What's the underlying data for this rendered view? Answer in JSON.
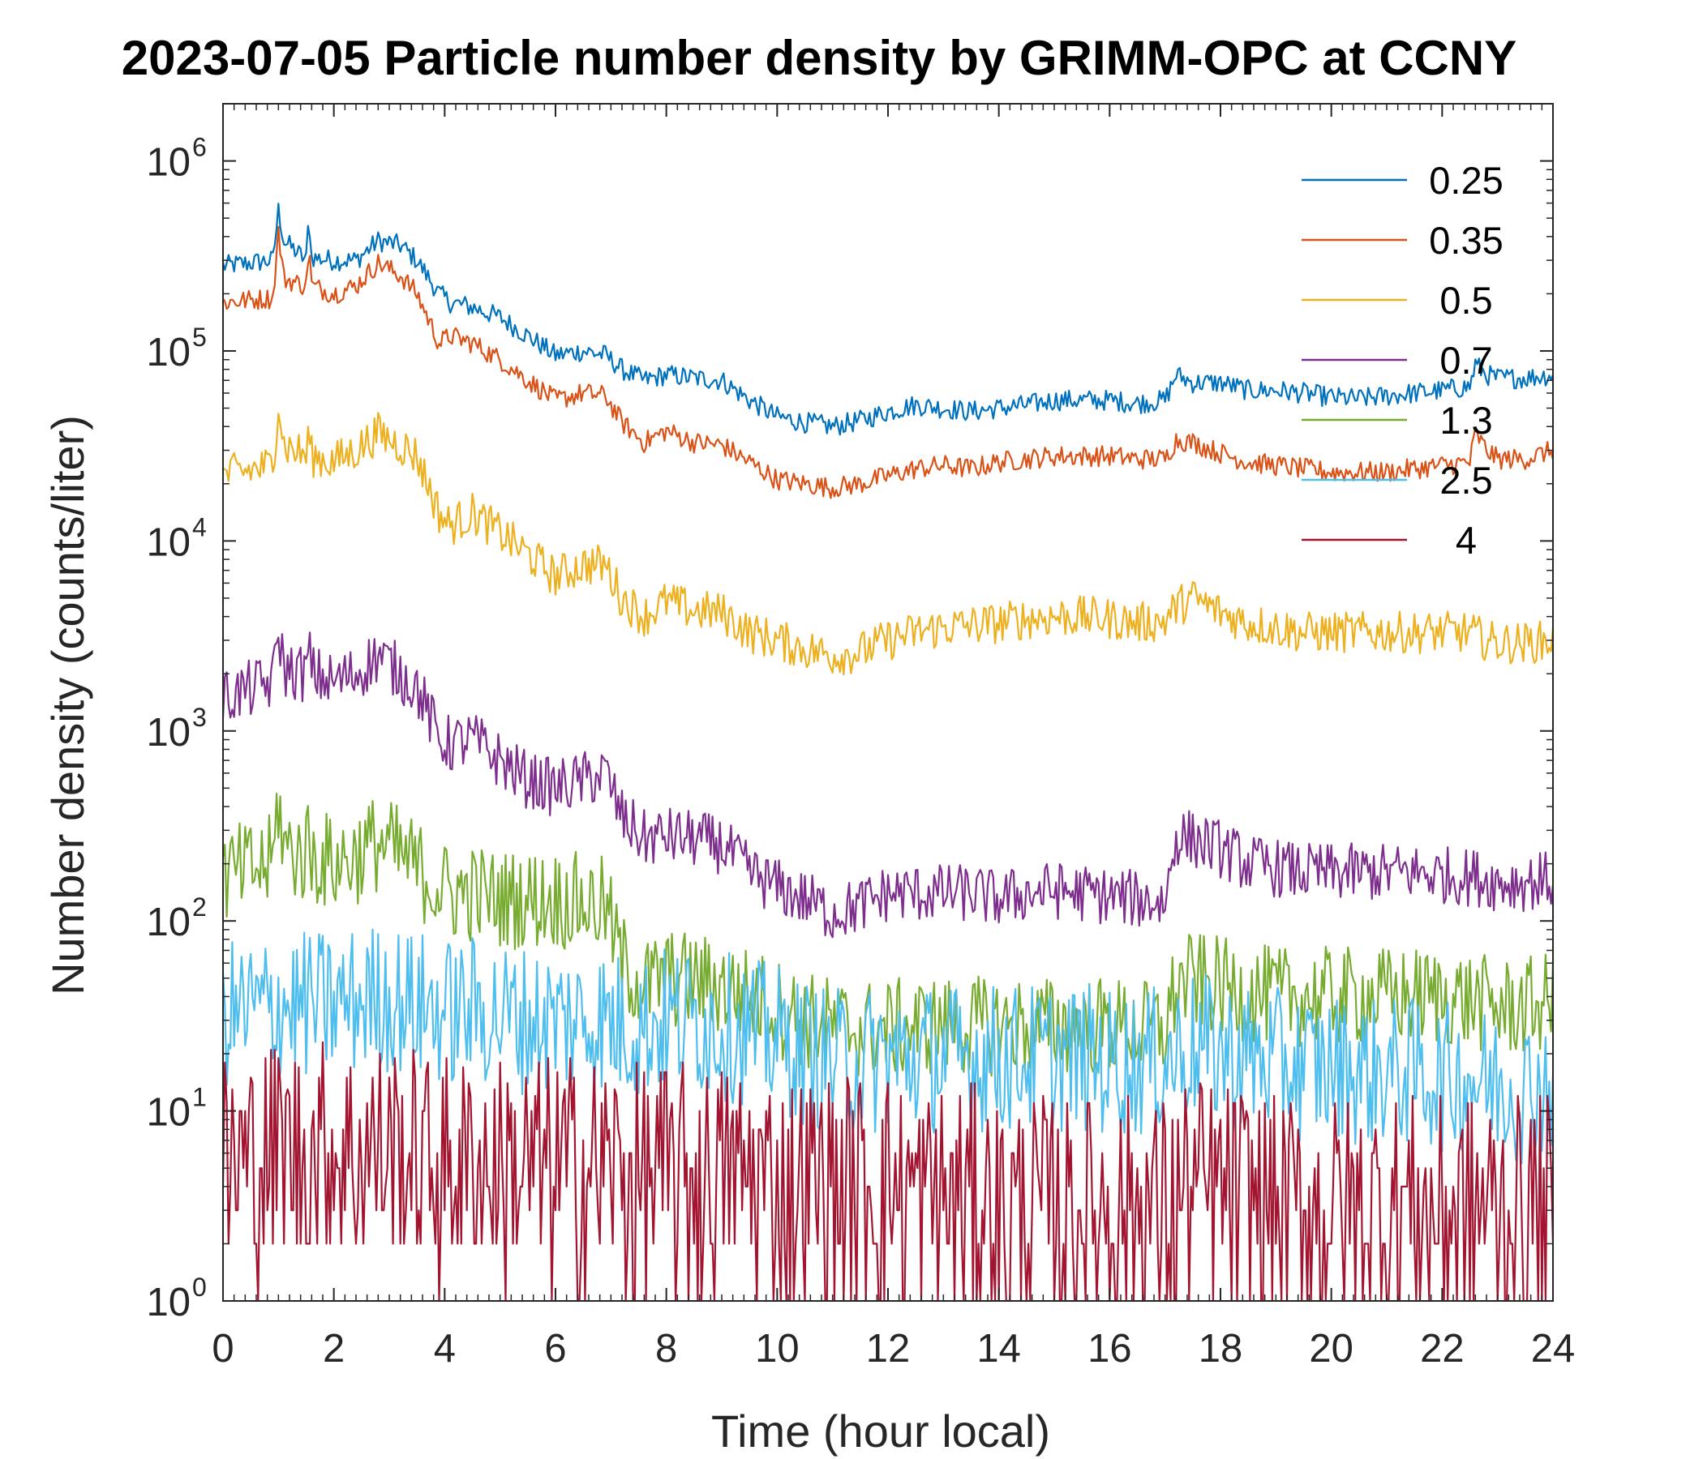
{
  "chart_data": {
    "type": "line",
    "title": "2023-07-05 Particle number density by GRIMM-OPC at CCNY",
    "xlabel": "Time (hour local)",
    "ylabel": "Number density (counts/liter)",
    "xlim": [
      0,
      24
    ],
    "ylim": [
      1,
      2000000
    ],
    "yscale": "log",
    "xticks": [
      0,
      2,
      4,
      6,
      8,
      10,
      12,
      14,
      16,
      18,
      20,
      22,
      24
    ],
    "ytick_base": "10",
    "ytick_exponents": [
      "0",
      "1",
      "2",
      "3",
      "4",
      "5",
      "6"
    ],
    "legend_position": "top-right",
    "grid": false,
    "noise_note": "values are smoothed trend estimates; the plotted lines add noise around them",
    "series": [
      {
        "name": "0.25",
        "color": "#0072BD",
        "x": [
          0,
          0.9,
          1.0,
          1.1,
          1.5,
          1.55,
          1.6,
          2.0,
          2.4,
          2.8,
          3.2,
          3.5,
          3.9,
          4.1,
          4.5,
          5.0,
          5.5,
          6.0,
          6.5,
          6.9,
          7.2,
          7.6,
          8.0,
          8.5,
          9.0,
          9.5,
          10.0,
          10.5,
          11.0,
          11.5,
          12.0,
          12.5,
          13.0,
          13.5,
          14.0,
          14.5,
          15.0,
          15.5,
          16.0,
          16.5,
          17.0,
          17.2,
          17.5,
          18.0,
          18.5,
          19.0,
          19.5,
          20.0,
          20.5,
          21.0,
          21.5,
          22.0,
          22.5,
          22.6,
          22.8,
          23.0,
          23.5,
          24.0
        ],
        "values": [
          280000,
          300000,
          550000,
          380000,
          300000,
          520000,
          310000,
          300000,
          300000,
          380000,
          360000,
          300000,
          200000,
          180000,
          170000,
          150000,
          120000,
          95000,
          100000,
          95000,
          80000,
          70000,
          75000,
          72000,
          70000,
          55000,
          45000,
          42000,
          40000,
          43000,
          48000,
          52000,
          50000,
          48000,
          50000,
          52000,
          55000,
          55000,
          55000,
          53000,
          55000,
          75000,
          68000,
          68000,
          62000,
          62000,
          60000,
          57000,
          56000,
          58000,
          60000,
          62000,
          65000,
          85000,
          75000,
          72000,
          72000,
          75000
        ]
      },
      {
        "name": "0.35",
        "color": "#D95319",
        "x": [
          0,
          0.9,
          1.0,
          1.1,
          1.5,
          1.55,
          1.6,
          2.0,
          2.4,
          2.8,
          3.2,
          3.5,
          3.9,
          4.1,
          4.5,
          5.0,
          5.5,
          6.0,
          6.5,
          6.9,
          7.2,
          7.6,
          8.0,
          8.5,
          9.0,
          9.5,
          10.0,
          10.5,
          11.0,
          11.5,
          12.0,
          12.5,
          13.0,
          13.5,
          14.0,
          14.5,
          15.0,
          15.5,
          16.0,
          16.5,
          17.0,
          17.2,
          17.5,
          18.0,
          18.5,
          19.0,
          19.5,
          20.0,
          20.5,
          21.0,
          21.5,
          22.0,
          22.5,
          22.6,
          22.8,
          23.0,
          23.5,
          24.0
        ],
        "values": [
          180000,
          190000,
          420000,
          240000,
          220000,
          370000,
          220000,
          200000,
          220000,
          290000,
          250000,
          200000,
          110000,
          120000,
          110000,
          90000,
          70000,
          55000,
          60000,
          58000,
          42000,
          33000,
          38000,
          33000,
          32000,
          26000,
          21000,
          20000,
          19000,
          20000,
          22000,
          24000,
          25000,
          24000,
          26000,
          27000,
          28000,
          28000,
          28000,
          27000,
          27000,
          34000,
          33000,
          29000,
          26000,
          25000,
          24000,
          23000,
          23000,
          23000,
          24000,
          25000,
          26000,
          37000,
          30000,
          27000,
          27000,
          30000
        ]
      },
      {
        "name": "0.5",
        "color": "#EDB120",
        "x": [
          0,
          0.9,
          1.0,
          1.1,
          1.5,
          1.55,
          1.6,
          2.0,
          2.4,
          2.8,
          3.2,
          3.5,
          3.9,
          4.1,
          4.5,
          5.0,
          5.5,
          6.0,
          6.5,
          6.9,
          7.2,
          7.6,
          8.0,
          8.5,
          9.0,
          9.5,
          10.0,
          10.5,
          11.0,
          11.5,
          12.0,
          12.5,
          13.0,
          13.5,
          14.0,
          14.5,
          15.0,
          15.5,
          16.0,
          16.5,
          17.0,
          17.2,
          17.5,
          18.0,
          18.5,
          19.0,
          19.5,
          20.0,
          20.5,
          21.0,
          21.5,
          22.0,
          22.5,
          22.6,
          22.8,
          23.0,
          23.5,
          24.0
        ],
        "values": [
          22000,
          25000,
          55000,
          32000,
          28000,
          38000,
          28000,
          26000,
          30000,
          37000,
          32000,
          28000,
          14000,
          12000,
          14000,
          11000,
          8500,
          6500,
          7500,
          7500,
          5000,
          4000,
          4800,
          4300,
          4200,
          3300,
          3000,
          2700,
          2500,
          2600,
          3000,
          3300,
          3500,
          3600,
          3700,
          3900,
          4000,
          4000,
          3900,
          3700,
          3800,
          4500,
          5000,
          4200,
          3700,
          3500,
          3300,
          3300,
          3300,
          3300,
          3300,
          3300,
          3300,
          3200,
          3000,
          2900,
          2900,
          3000
        ]
      },
      {
        "name": "0.7",
        "color": "#7E2F8E",
        "x": [
          0,
          0.9,
          1.0,
          1.1,
          1.5,
          1.55,
          1.6,
          2.0,
          2.4,
          2.8,
          3.2,
          3.5,
          3.9,
          4.1,
          4.5,
          5.0,
          5.5,
          6.0,
          6.5,
          6.9,
          7.2,
          7.6,
          8.0,
          8.5,
          9.0,
          9.5,
          10.0,
          10.5,
          11.0,
          11.5,
          12.0,
          12.5,
          13.0,
          13.5,
          14.0,
          14.5,
          15.0,
          15.5,
          16.0,
          16.5,
          17.0,
          17.2,
          17.5,
          18.0,
          18.5,
          19.0,
          19.5,
          20.0,
          20.5,
          21.0,
          21.5,
          22.0,
          22.5,
          22.6,
          22.8,
          23.0,
          23.5,
          24.0
        ],
        "values": [
          1500,
          1800,
          3500,
          2100,
          2000,
          2800,
          2000,
          1800,
          2000,
          2500,
          2000,
          1700,
          900,
          850,
          900,
          700,
          550,
          500,
          550,
          600,
          350,
          270,
          280,
          270,
          250,
          180,
          150,
          130,
          110,
          120,
          140,
          140,
          140,
          140,
          130,
          140,
          145,
          140,
          135,
          130,
          125,
          280,
          270,
          240,
          200,
          190,
          180,
          180,
          180,
          180,
          180,
          175,
          170,
          170,
          165,
          160,
          160,
          165
        ]
      },
      {
        "name": "1.3",
        "color": "#77AC30",
        "x": [
          0,
          0.9,
          1.0,
          1.1,
          1.5,
          1.55,
          1.6,
          2.0,
          2.4,
          2.8,
          3.2,
          3.5,
          3.9,
          4.1,
          4.5,
          5.0,
          5.5,
          6.0,
          6.5,
          6.9,
          7.2,
          7.6,
          8.0,
          8.5,
          9.0,
          9.5,
          10.0,
          10.5,
          11.0,
          11.5,
          12.0,
          12.5,
          13.0,
          13.5,
          14.0,
          14.5,
          15.0,
          15.5,
          16.0,
          16.5,
          17.0,
          17.2,
          17.5,
          18.0,
          18.5,
          19.0,
          19.5,
          20.0,
          20.5,
          21.0,
          21.5,
          22.0,
          22.5,
          22.6,
          22.8,
          23.0,
          23.5,
          24.0
        ],
        "values": [
          170,
          200,
          450,
          240,
          220,
          290,
          220,
          200,
          220,
          260,
          220,
          190,
          150,
          140,
          140,
          130,
          130,
          130,
          125,
          120,
          60,
          45,
          50,
          48,
          45,
          40,
          35,
          30,
          28,
          27,
          27,
          28,
          28,
          28,
          28,
          28,
          28,
          28,
          28,
          27,
          27,
          45,
          48,
          45,
          42,
          40,
          40,
          40,
          40,
          40,
          40,
          40,
          38,
          38,
          36,
          35,
          35,
          38
        ]
      },
      {
        "name": "2.5",
        "color": "#4DBEEE",
        "x": [
          0,
          0.9,
          1.0,
          1.1,
          1.5,
          1.55,
          1.6,
          2.0,
          2.4,
          2.8,
          3.2,
          3.5,
          3.9,
          4.1,
          4.5,
          5.0,
          5.5,
          6.0,
          6.5,
          6.9,
          7.2,
          7.6,
          8.0,
          8.5,
          9.0,
          9.5,
          10.0,
          10.5,
          11.0,
          11.5,
          12.0,
          12.5,
          13.0,
          13.5,
          14.0,
          14.5,
          15.0,
          15.5,
          16.0,
          16.5,
          17.0,
          17.2,
          17.5,
          18.0,
          18.5,
          19.0,
          19.5,
          20.0,
          20.5,
          21.0,
          21.5,
          22.0,
          22.5,
          22.6,
          22.8,
          23.0,
          23.5,
          24.0
        ],
        "values": [
          32,
          35,
          38,
          36,
          36,
          38,
          36,
          36,
          38,
          40,
          38,
          36,
          34,
          33,
          34,
          32,
          30,
          30,
          30,
          30,
          28,
          28,
          30,
          30,
          28,
          26,
          24,
          20,
          18,
          18,
          19,
          19,
          19,
          19,
          19,
          19,
          19,
          19,
          18,
          18,
          18,
          20,
          22,
          20,
          19,
          18,
          17,
          17,
          16,
          16,
          16,
          15,
          15,
          15,
          14,
          14,
          13,
          14
        ]
      },
      {
        "name": "4",
        "color": "#A2142F",
        "x": [
          0,
          0.9,
          1.0,
          1.1,
          1.5,
          1.55,
          1.6,
          2.0,
          2.4,
          2.8,
          3.2,
          3.5,
          3.9,
          4.1,
          4.5,
          5.0,
          5.5,
          6.0,
          6.5,
          6.9,
          7.2,
          7.6,
          8.0,
          8.5,
          9.0,
          9.5,
          10.0,
          10.5,
          11.0,
          11.5,
          12.0,
          12.5,
          13.0,
          13.5,
          14.0,
          14.5,
          15.0,
          15.5,
          16.0,
          16.5,
          17.0,
          17.2,
          17.5,
          18.0,
          18.5,
          19.0,
          19.5,
          20.0,
          20.5,
          21.0,
          21.5,
          22.0,
          22.5,
          22.6,
          22.8,
          23.0,
          23.5,
          24.0
        ],
        "values": [
          5,
          6,
          7,
          6,
          6,
          6,
          6,
          6,
          6,
          6,
          6,
          5,
          5,
          5,
          5,
          5,
          5,
          5,
          5,
          5,
          4.5,
          4.5,
          4.5,
          4.5,
          4.5,
          4.5,
          4,
          4,
          4,
          4,
          4,
          3.5,
          3.5,
          3.5,
          3,
          3,
          3,
          3,
          3,
          3,
          3,
          3.5,
          4,
          3.5,
          3.5,
          3,
          3,
          3,
          3,
          3,
          3,
          3,
          3,
          3,
          3,
          3,
          3,
          3
        ]
      }
    ]
  }
}
